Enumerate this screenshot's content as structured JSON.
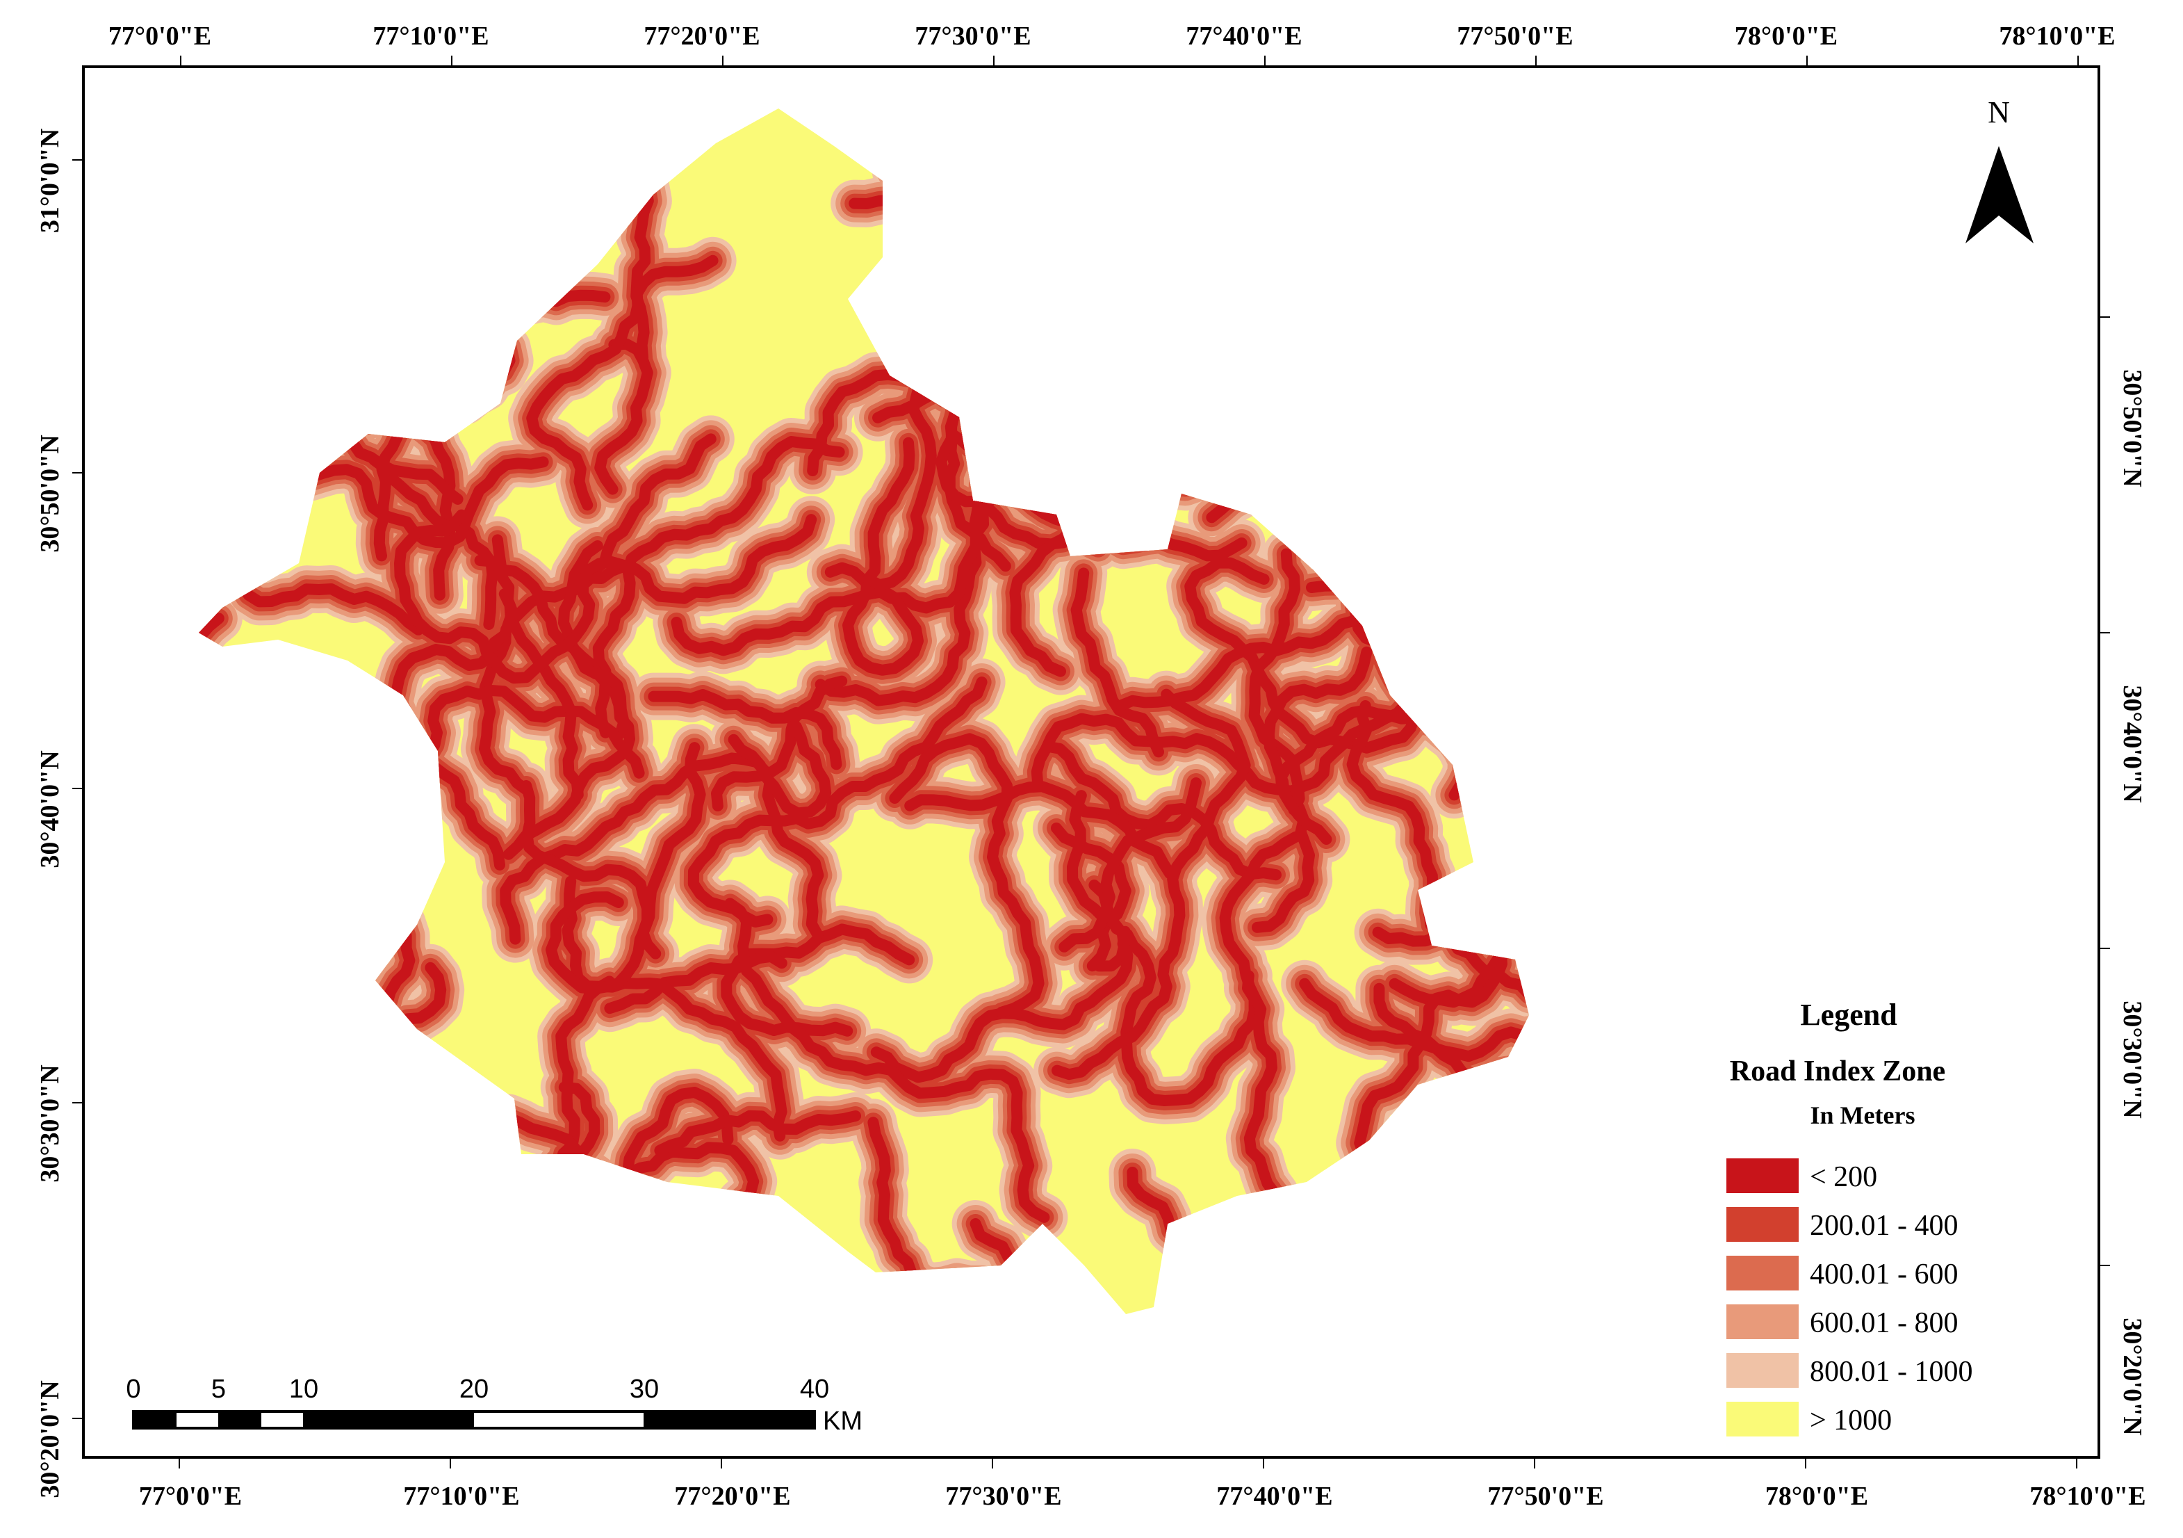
{
  "top_axis": {
    "labels": [
      "77°0'0\"E",
      "77°10'0\"E",
      "77°20'0\"E",
      "77°30'0\"E",
      "77°40'0\"E",
      "77°50'0\"E",
      "78°0'0\"E",
      "78°10'0\"E"
    ]
  },
  "bottom_axis": {
    "labels": [
      "77°0'0\"E",
      "77°10'0\"E",
      "77°20'0\"E",
      "77°30'0\"E",
      "77°40'0\"E",
      "77°50'0\"E",
      "78°0'0\"E",
      "78°10'0\"E"
    ]
  },
  "left_axis": {
    "labels": [
      "31°0'0\"N",
      "30°50'0\"N",
      "30°40'0\"N",
      "30°30'0\"N",
      "30°20'0\"N"
    ]
  },
  "right_axis": {
    "labels": [
      "30°50'0\"N",
      "30°40'0\"N",
      "30°30'0\"N",
      "30°20'0\"N"
    ]
  },
  "north_arrow": {
    "label": "N"
  },
  "legend": {
    "title": "Legend",
    "subtitle": "Road Index Zone",
    "unit": "In Meters",
    "items": [
      {
        "label": "< 200",
        "color": "#c8141a"
      },
      {
        "label": "200.01 - 400",
        "color": "#d2402e"
      },
      {
        "label": "400.01 - 600",
        "color": "#dc6b4f"
      },
      {
        "label": "600.01 - 800",
        "color": "#e89a7a"
      },
      {
        "label": "800.01 - 1000",
        "color": "#f0c2a6"
      },
      {
        "label": "> 1000",
        "color": "#fafa78"
      }
    ]
  },
  "scale_bar": {
    "ticks": [
      0,
      5,
      10,
      20,
      30,
      40
    ],
    "unit": "KM"
  }
}
